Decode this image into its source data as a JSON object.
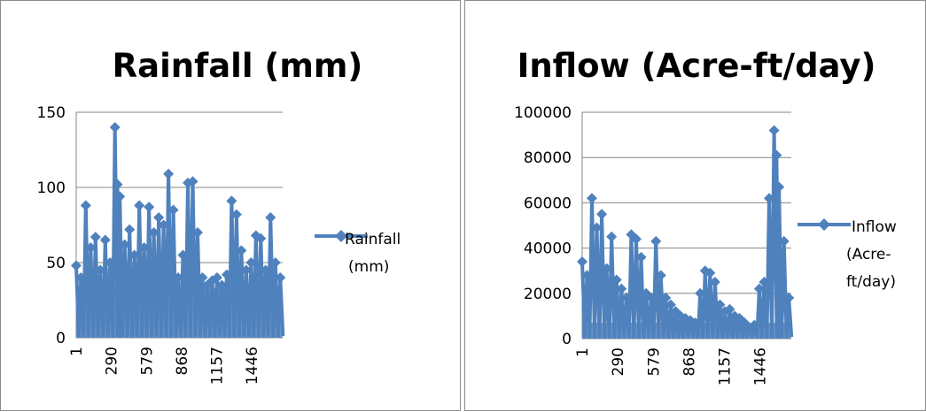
{
  "charts": [
    {
      "title": "Rainfall (mm)",
      "chart_data": {
        "type": "line",
        "title": "Rainfall (mm)",
        "x_ticks": [
          "1",
          "290",
          "579",
          "868",
          "1157",
          "1446"
        ],
        "y_ticks": [
          "0",
          "50",
          "100",
          "150"
        ],
        "ylim": [
          0,
          150
        ],
        "x_range": [
          1,
          1700
        ],
        "grid": true,
        "legend": "right",
        "series": [
          {
            "name": "Rainfall (mm)",
            "color": "#4F81BD",
            "x": [
              1,
              40,
              80,
              120,
              160,
              200,
              240,
              280,
              320,
              340,
              360,
              400,
              440,
              480,
              520,
              560,
              600,
              640,
              680,
              720,
              760,
              800,
              840,
              880,
              920,
              960,
              1000,
              1040,
              1080,
              1120,
              1160,
              1200,
              1240,
              1280,
              1320,
              1360,
              1400,
              1440,
              1480,
              1520,
              1560,
              1600,
              1640,
              1680
            ],
            "values": [
              48,
              40,
              88,
              60,
              67,
              45,
              65,
              50,
              140,
              102,
              94,
              62,
              72,
              55,
              88,
              60,
              87,
              70,
              80,
              75,
              109,
              85,
              40,
              55,
              103,
              104,
              70,
              40,
              35,
              38,
              40,
              35,
              42,
              91,
              82,
              58,
              45,
              50,
              68,
              66,
              45,
              80,
              50,
              40
            ]
          }
        ]
      }
    },
    {
      "title": "Inflow (Acre-ft/day)",
      "chart_data": {
        "type": "line",
        "title": "Inflow (Acre-ft/day)",
        "x_ticks": [
          "1",
          "290",
          "579",
          "868",
          "1157",
          "1446"
        ],
        "y_ticks": [
          "0",
          "20000",
          "40000",
          "60000",
          "80000",
          "100000"
        ],
        "ylim": [
          0,
          100000
        ],
        "x_range": [
          1,
          1700
        ],
        "grid": true,
        "legend": "right",
        "series": [
          {
            "name": "Inflow (Acre-ft/day)",
            "color": "#4F81BD",
            "x": [
              1,
              40,
              80,
              120,
              160,
              200,
              240,
              280,
              320,
              360,
              400,
              440,
              480,
              520,
              560,
              600,
              640,
              680,
              720,
              760,
              800,
              840,
              880,
              920,
              960,
              1000,
              1040,
              1080,
              1120,
              1160,
              1200,
              1240,
              1280,
              1320,
              1360,
              1400,
              1440,
              1480,
              1520,
              1560,
              1580,
              1600,
              1640,
              1680
            ],
            "values": [
              34000,
              28000,
              62000,
              49000,
              55000,
              31000,
              45000,
              26000,
              22000,
              18000,
              46000,
              44000,
              36000,
              20000,
              18000,
              43000,
              28000,
              18000,
              15000,
              12000,
              10000,
              9000,
              8000,
              7000,
              20000,
              30000,
              29000,
              25000,
              15000,
              12000,
              13000,
              10000,
              9000,
              7000,
              5000,
              6000,
              22000,
              25000,
              62000,
              92000,
              81000,
              67000,
              43000,
              18000
            ]
          }
        ]
      }
    }
  ]
}
